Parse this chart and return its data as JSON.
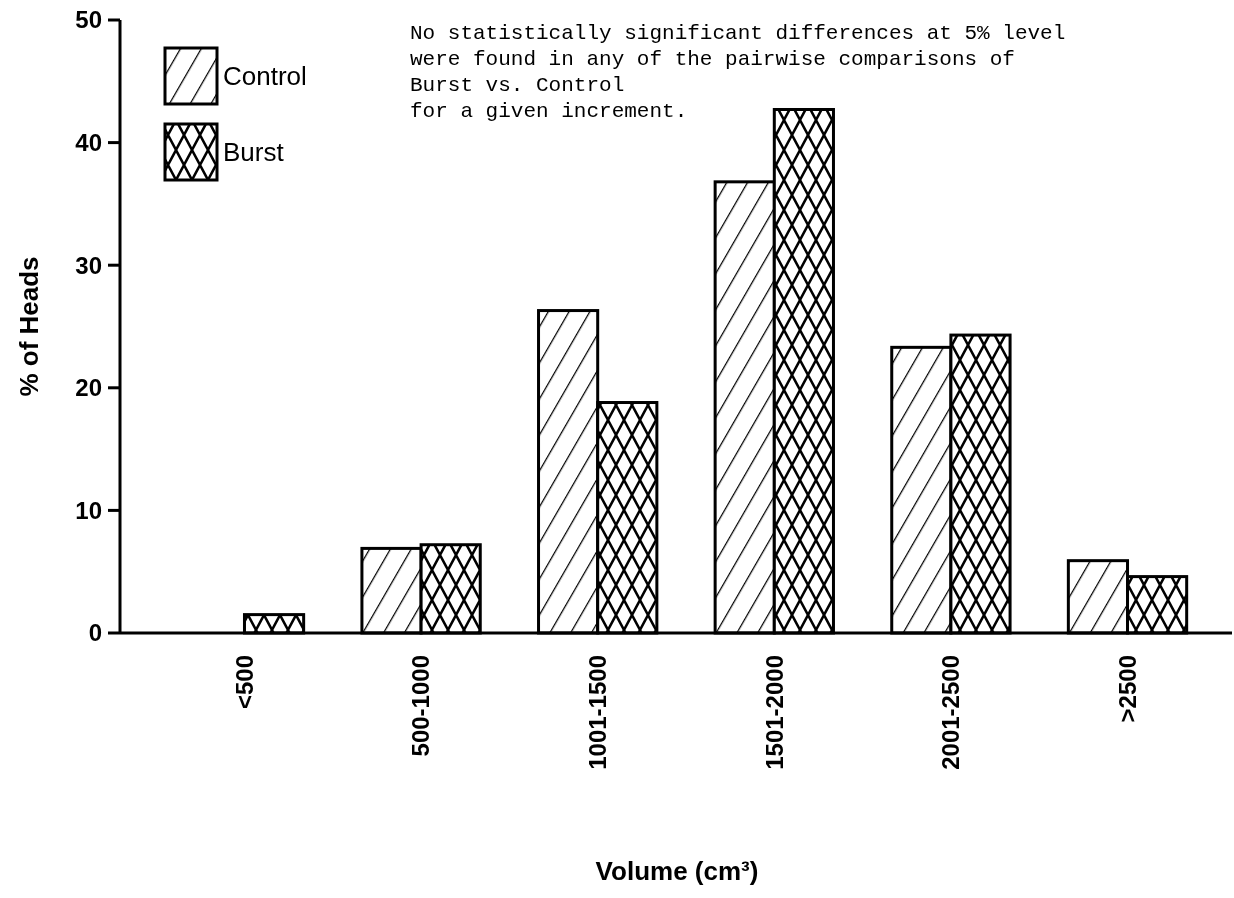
{
  "chart_data": {
    "type": "bar",
    "xlabel": "Volume (cm³)",
    "ylabel": "% of Heads",
    "categories": [
      "<500",
      "500-1000",
      "1001-1500",
      "1501-2000",
      "2001-2500",
      ">2500"
    ],
    "series": [
      {
        "name": "Control",
        "color": "#000000",
        "values": [
          0,
          6.9,
          26.3,
          36.8,
          23.3,
          5.9
        ]
      },
      {
        "name": "Burst",
        "color": "#000000",
        "values": [
          1.5,
          7.2,
          18.8,
          42.7,
          24.3,
          4.6
        ]
      }
    ],
    "ylim": [
      0,
      50
    ],
    "yticks": [
      0,
      10,
      20,
      30,
      40,
      50
    ],
    "grid": false,
    "legend": "top left",
    "annotations": [
      "No statistically significant differences at 5% level",
      "were found in any of the pairwise comparisons of",
      "Burst vs. Control",
      "for a given increment."
    ]
  }
}
